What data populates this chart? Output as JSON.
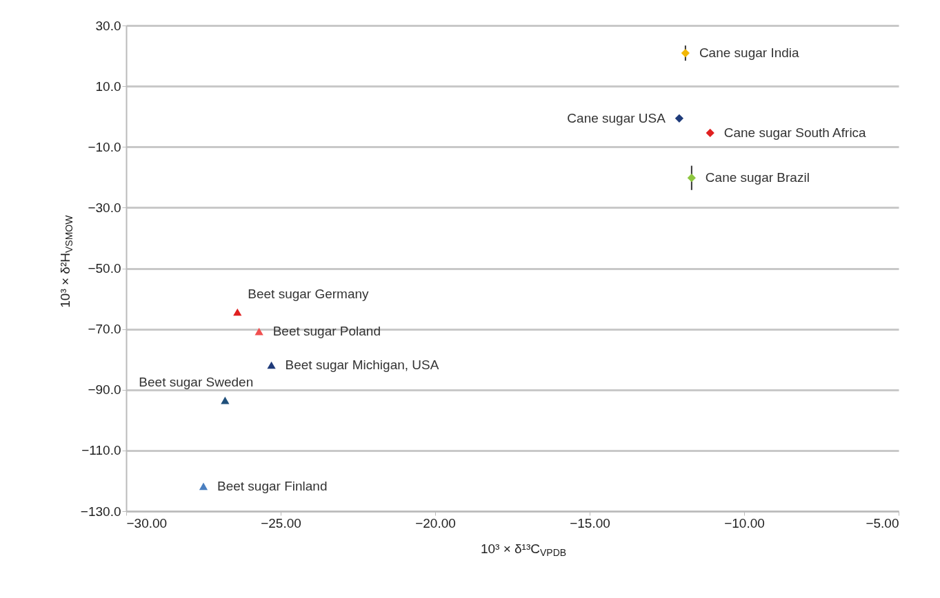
{
  "chart_data": {
    "type": "scatter",
    "xlabel": "10³ × δ¹³C$_{VPDB}$",
    "ylabel": "10³ × δ²H$_{VSMOW}$",
    "xlim": [
      -30,
      -5
    ],
    "ylim": [
      -130,
      30
    ],
    "xticks": [
      {
        "value": -30,
        "label": "−30.00"
      },
      {
        "value": -25,
        "label": "−25.00"
      },
      {
        "value": -20,
        "label": "−20.00"
      },
      {
        "value": -15,
        "label": "−15.00"
      },
      {
        "value": -10,
        "label": "−10.00"
      },
      {
        "value": -5,
        "label": "−5.00"
      }
    ],
    "yticks": [
      {
        "value": 30,
        "label": "30.0"
      },
      {
        "value": 10,
        "label": "10.0"
      },
      {
        "value": -10,
        "label": "−10.0"
      },
      {
        "value": -30,
        "label": "−30.0"
      },
      {
        "value": -50,
        "label": "−50.0"
      },
      {
        "value": -70,
        "label": "−70.0"
      },
      {
        "value": -90,
        "label": "−90.0"
      },
      {
        "value": -110,
        "label": "−110.0"
      },
      {
        "value": -130,
        "label": "−130.0"
      }
    ],
    "grid": "y",
    "series": [
      {
        "name": "Cane sugar India",
        "color": "#f2b705",
        "marker": "diamond",
        "x": [
          -11.9
        ],
        "values": [
          20.9
        ],
        "errors": [
          2.5
        ]
      },
      {
        "name": "Cane sugar USA",
        "color": "#1f3b7a",
        "marker": "diamond",
        "x": [
          -12.1
        ],
        "values": [
          -0.6
        ]
      },
      {
        "name": "Cane sugar South Africa",
        "color": "#e02020",
        "marker": "diamond",
        "x": [
          -11.1
        ],
        "values": [
          -5.4
        ]
      },
      {
        "name": "Cane sugar Brazil",
        "color": "#8dc63f",
        "marker": "diamond",
        "x": [
          -11.7
        ],
        "values": [
          -20.2
        ],
        "errors": [
          4
        ]
      },
      {
        "name": "Beet sugar Germany",
        "color": "#e02020",
        "marker": "triangle",
        "x": [
          -26.4
        ],
        "values": [
          -64.4
        ]
      },
      {
        "name": "Beet sugar Poland",
        "color": "#f05050",
        "marker": "triangle",
        "x": [
          -25.7
        ],
        "values": [
          -70.8
        ]
      },
      {
        "name": "Beet sugar Michigan, USA",
        "color": "#1f3b7a",
        "marker": "triangle",
        "x": [
          -25.3
        ],
        "values": [
          -81.9
        ]
      },
      {
        "name": "Beet sugar Sweden",
        "color": "#1f4f7a",
        "marker": "triangle",
        "x": [
          -26.8
        ],
        "values": [
          -93.5
        ]
      },
      {
        "name": "Beet sugar Finland",
        "color": "#4a7fc0",
        "marker": "triangle",
        "x": [
          -27.5
        ],
        "values": [
          -121.8
        ]
      }
    ]
  }
}
